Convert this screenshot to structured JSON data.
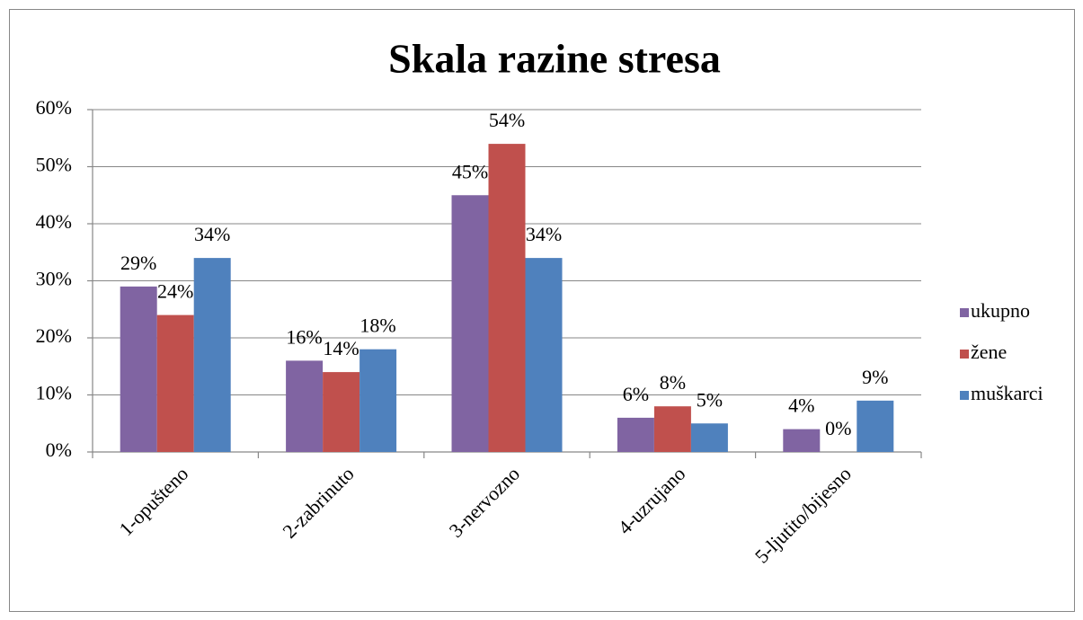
{
  "chart_data": {
    "type": "bar",
    "title": "Skala razine stresa",
    "categories": [
      "1-opušteno",
      "2-zabrinuto",
      "3-nervozno",
      "4-uzrujano",
      "5-ljutito/bijesno"
    ],
    "series": [
      {
        "name": "ukupno",
        "color": "#8064a2",
        "values": [
          29,
          16,
          45,
          6,
          4
        ],
        "value_labels": [
          "29%",
          "16%",
          "45%",
          "6%",
          "4%"
        ]
      },
      {
        "name": "žene",
        "color": "#c0504d",
        "values": [
          24,
          14,
          54,
          8,
          0
        ],
        "value_labels": [
          "24%",
          "14%",
          "54%",
          "8%",
          "0%"
        ]
      },
      {
        "name": "muškarci",
        "color": "#4f81bd",
        "values": [
          34,
          18,
          34,
          5,
          9
        ],
        "value_labels": [
          "34%",
          "18%",
          "34%",
          "5%",
          "9%"
        ]
      }
    ],
    "ylim": [
      0,
      60
    ],
    "yticks": [
      {
        "value": 0,
        "label": "0%"
      },
      {
        "value": 10,
        "label": "10%"
      },
      {
        "value": 20,
        "label": "20%"
      },
      {
        "value": 30,
        "label": "30%"
      },
      {
        "value": 40,
        "label": "40%"
      },
      {
        "value": 50,
        "label": "50%"
      },
      {
        "value": 60,
        "label": "60%"
      }
    ],
    "grid": true,
    "legend": "right"
  }
}
